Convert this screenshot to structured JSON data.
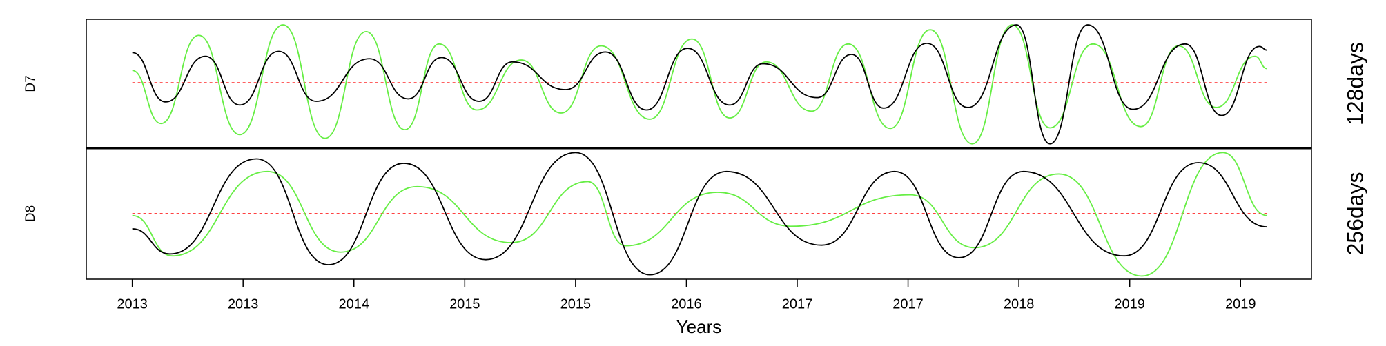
{
  "chart_data": [
    {
      "type": "line",
      "label": "D7",
      "side_label": "128days",
      "xlim": [
        -41.5,
        1064
      ],
      "ylim": [
        -1.06,
        1.03
      ],
      "hline": {
        "value": 0,
        "color": "#ff0000",
        "dashed": true
      },
      "series": [
        {
          "color": "#66ee44",
          "x": [
            0,
            26,
            60,
            97,
            136,
            174,
            211,
            246,
            277,
            311,
            351,
            387,
            423,
            467,
            505,
            539,
            572,
            613,
            646,
            684,
            720,
            758,
            794,
            828,
            867,
            910,
            944,
            978,
            1013,
            1024
          ],
          "values": [
            0.2,
            -0.66,
            0.77,
            -0.84,
            0.94,
            -0.9,
            0.83,
            -0.76,
            0.63,
            -0.44,
            0.37,
            -0.49,
            0.6,
            -0.59,
            0.71,
            -0.57,
            0.34,
            -0.46,
            0.63,
            -0.74,
            0.86,
            -0.99,
            0.94,
            -0.73,
            0.63,
            -0.71,
            0.6,
            -0.4,
            0.43,
            0.23
          ]
        },
        {
          "color": "#000000",
          "x": [
            0,
            30,
            66,
            97,
            132,
            166,
            214,
            249,
            279,
            313,
            343,
            391,
            427,
            464,
            501,
            539,
            569,
            618,
            649,
            678,
            717,
            754,
            798,
            828,
            862,
            903,
            950,
            983,
            1017,
            1024
          ],
          "values": [
            0.49,
            -0.31,
            0.43,
            -0.36,
            0.51,
            -0.3,
            0.39,
            -0.26,
            0.41,
            -0.3,
            0.34,
            -0.11,
            0.5,
            -0.44,
            0.56,
            -0.36,
            0.31,
            -0.24,
            0.46,
            -0.41,
            0.64,
            -0.4,
            0.94,
            -0.99,
            0.94,
            -0.43,
            0.63,
            -0.53,
            0.59,
            0.53
          ]
        }
      ]
    },
    {
      "type": "line",
      "label": "D8",
      "side_label": "256days",
      "xlim": [
        -41.5,
        1064
      ],
      "ylim": [
        -1.04,
        1.04
      ],
      "hline": {
        "value": 0,
        "color": "#ff0000",
        "dashed": true
      },
      "xlabel": "Years",
      "xticks": [
        {
          "value": 0,
          "label": "2013"
        },
        {
          "value": 100,
          "label": "2013"
        },
        {
          "value": 200,
          "label": "2014"
        },
        {
          "value": 300,
          "label": "2015"
        },
        {
          "value": 400,
          "label": "2015"
        },
        {
          "value": 500,
          "label": "2016"
        },
        {
          "value": 600,
          "label": "2017"
        },
        {
          "value": 700,
          "label": "2017"
        },
        {
          "value": 800,
          "label": "2018"
        },
        {
          "value": 900,
          "label": "2019"
        },
        {
          "value": 1000,
          "label": "2019"
        }
      ],
      "series": [
        {
          "color": "#66ee44",
          "x": [
            0,
            36,
            122,
            188,
            257,
            342,
            411,
            445,
            528,
            595,
            702,
            760,
            836,
            911,
            984,
            1024
          ],
          "values": [
            -0.03,
            -0.67,
            0.67,
            -0.61,
            0.43,
            -0.46,
            0.51,
            -0.51,
            0.34,
            -0.2,
            0.3,
            -0.54,
            0.63,
            -0.99,
            0.97,
            -0.03
          ]
        },
        {
          "color": "#000000",
          "x": [
            0,
            34,
            112,
            177,
            245,
            319,
            400,
            467,
            536,
            622,
            688,
            746,
            804,
            895,
            962,
            1024
          ],
          "values": [
            -0.24,
            -0.64,
            0.87,
            -0.81,
            0.8,
            -0.73,
            0.97,
            -0.97,
            0.67,
            -0.5,
            0.67,
            -0.7,
            0.67,
            -0.67,
            0.81,
            -0.21
          ]
        }
      ]
    }
  ]
}
